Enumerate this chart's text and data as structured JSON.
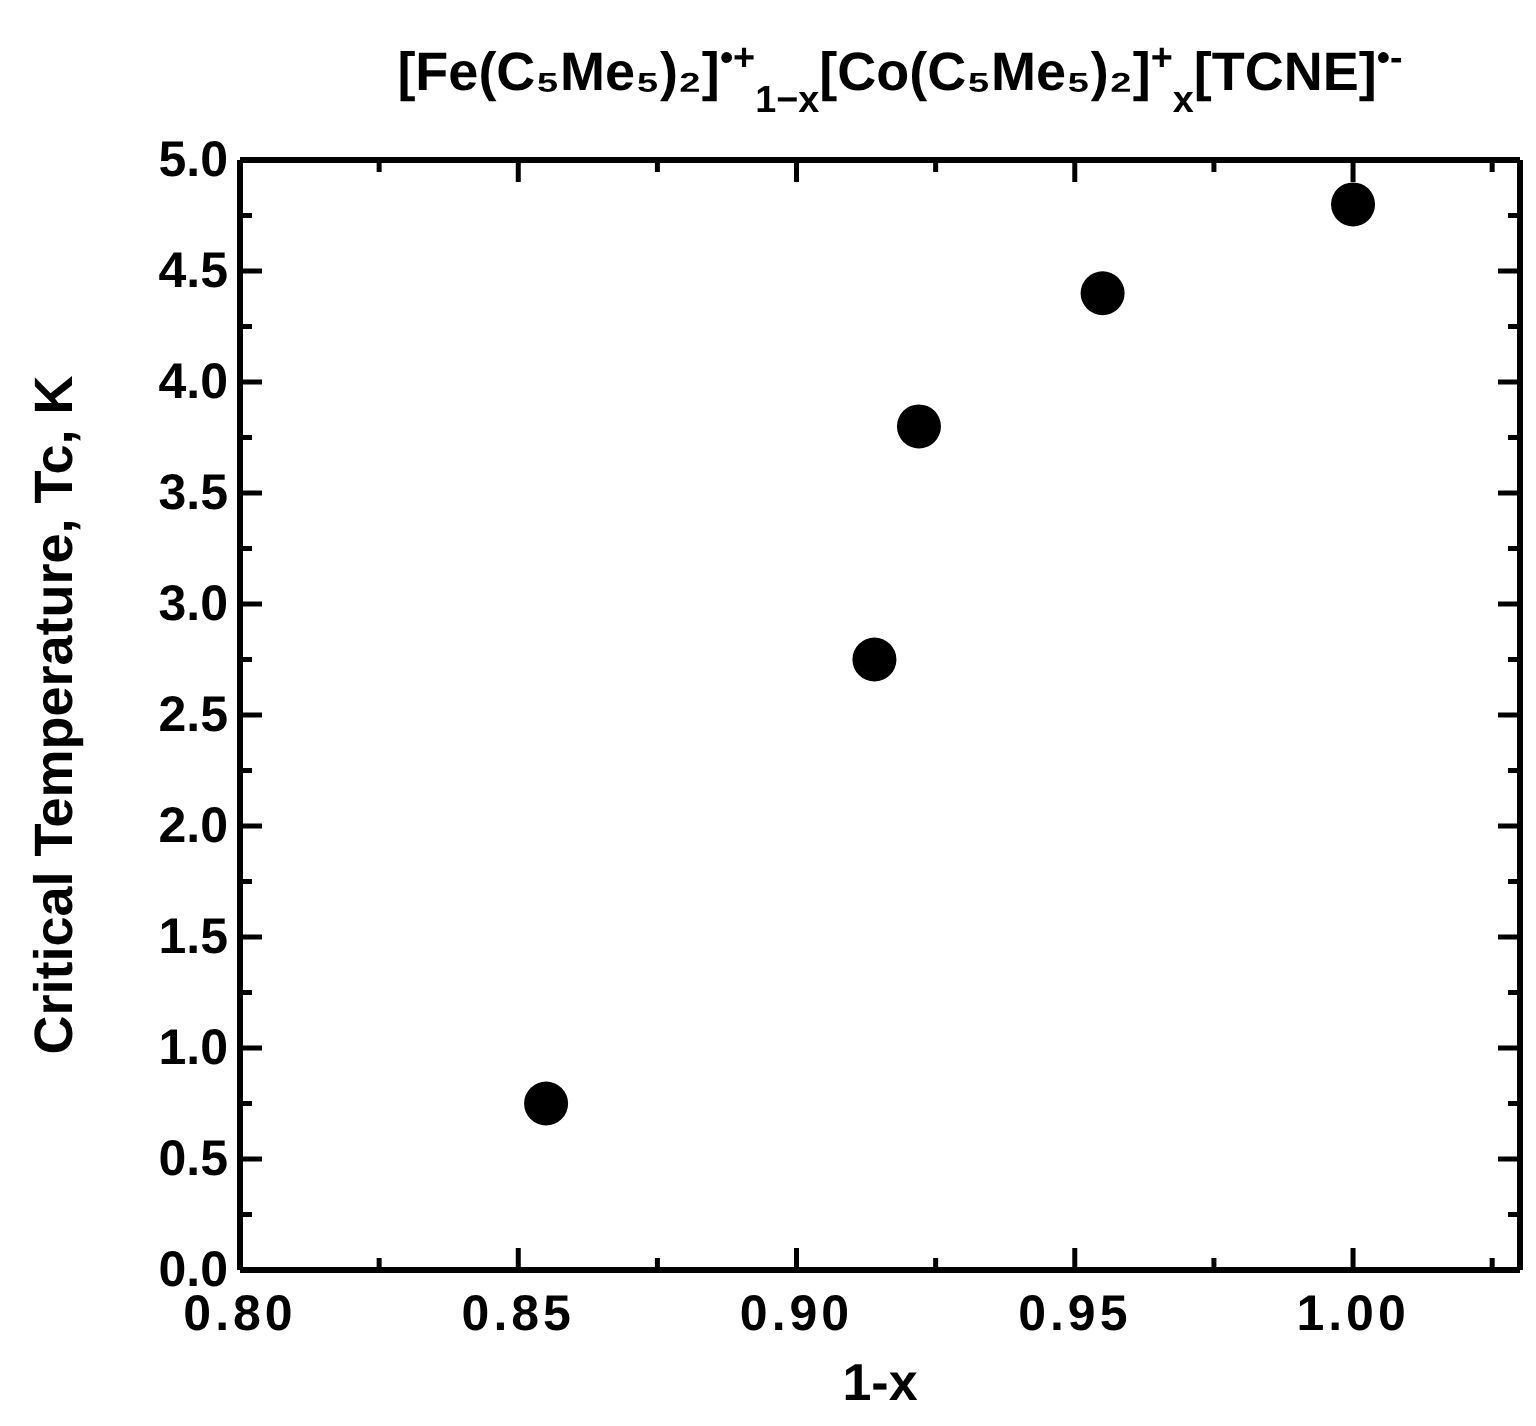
{
  "chart_data": {
    "type": "scatter",
    "title": "[Fe(C₅Me₅)₂]$^{•+}$$_{1−x}$[Co(C₅Me₅)₂]$^{+}$$_{x}$[TCNE]$^{•-}$",
    "xlabel": "1-x",
    "ylabel": "Critical Temperature, Tc, K",
    "series": [
      {
        "color": "#000000",
        "x": [
          0.855,
          0.914,
          0.922,
          0.955,
          1.0
        ],
        "values": [
          0.75,
          2.75,
          3.8,
          4.4,
          4.8
        ]
      }
    ],
    "marker": "circle",
    "grid": false,
    "xlim": [
      0.8,
      1.03
    ],
    "xticks": [
      {
        "value": 0.8,
        "label": "0.80"
      },
      {
        "value": 0.825,
        "label": null
      },
      {
        "value": 0.85,
        "label": "0.85"
      },
      {
        "value": 0.875,
        "label": null
      },
      {
        "value": 0.9,
        "label": "0.90"
      },
      {
        "value": 0.925,
        "label": null
      },
      {
        "value": 0.95,
        "label": "0.95"
      },
      {
        "value": 0.975,
        "label": null
      },
      {
        "value": 1.0,
        "label": "1.00"
      },
      {
        "value": 1.025,
        "label": null
      }
    ],
    "ylim": [
      0,
      5
    ],
    "yticks": [
      {
        "value": 0,
        "label": "0.0"
      },
      {
        "value": 0.25,
        "label": null
      },
      {
        "value": 0.5,
        "label": "0.5"
      },
      {
        "value": 0.75,
        "label": null
      },
      {
        "value": 1,
        "label": "1.0"
      },
      {
        "value": 1.25,
        "label": null
      },
      {
        "value": 1.5,
        "label": "1.5"
      },
      {
        "value": 1.75,
        "label": null
      },
      {
        "value": 2,
        "label": "2.0"
      },
      {
        "value": 2.25,
        "label": null
      },
      {
        "value": 2.5,
        "label": "2.5"
      },
      {
        "value": 2.75,
        "label": null
      },
      {
        "value": 3,
        "label": "3.0"
      },
      {
        "value": 3.25,
        "label": null
      },
      {
        "value": 3.5,
        "label": "3.5"
      },
      {
        "value": 3.75,
        "label": null
      },
      {
        "value": 4,
        "label": "4.0"
      },
      {
        "value": 4.25,
        "label": null
      },
      {
        "value": 4.5,
        "label": "4.5"
      },
      {
        "value": 4.75,
        "label": null
      },
      {
        "value": 5,
        "label": "5.0"
      }
    ]
  }
}
